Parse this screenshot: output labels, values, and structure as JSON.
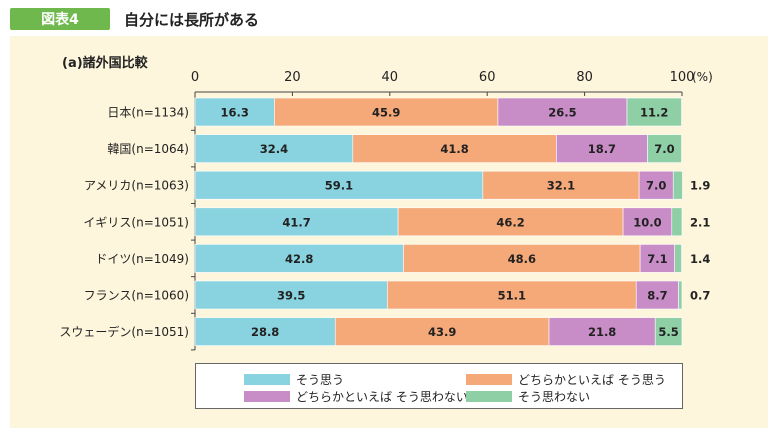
{
  "header": {
    "figure_label": "図表4",
    "title": "自分には長所がある"
  },
  "chart_data": {
    "type": "bar",
    "orientation": "horizontal",
    "stacked": true,
    "subtitle": "(a)諸外国比較",
    "x_unit": "(%)",
    "xlim": [
      0,
      100
    ],
    "x_ticks": [
      "0",
      "20",
      "40",
      "60",
      "80",
      "100"
    ],
    "categories": [
      "日本(n=1134)",
      "韓国(n=1064)",
      "アメリカ(n=1063)",
      "イギリス(n=1051)",
      "ドイツ(n=1049)",
      "フランス(n=1060)",
      "スウェーデン(n=1051)"
    ],
    "series": [
      {
        "name": "そう思う",
        "color": "#88d3df",
        "values": [
          16.3,
          32.4,
          59.1,
          41.7,
          42.8,
          39.5,
          28.8
        ]
      },
      {
        "name": "どちらかといえば そう思う",
        "color": "#f5a878",
        "values": [
          45.9,
          41.8,
          32.1,
          46.2,
          48.6,
          51.1,
          43.9
        ]
      },
      {
        "name": "どちらかといえば そう思わない",
        "color": "#c88cc6",
        "values": [
          26.5,
          18.7,
          7.0,
          10.0,
          7.1,
          8.7,
          21.8
        ]
      },
      {
        "name": "そう思わない",
        "color": "#8fcfa6",
        "values": [
          11.2,
          7.0,
          1.9,
          2.1,
          1.4,
          0.7,
          5.5
        ]
      }
    ],
    "value_labels": [
      [
        "16.3",
        "45.9",
        "26.5",
        "11.2"
      ],
      [
        "32.4",
        "41.8",
        "18.7",
        "7.0"
      ],
      [
        "59.1",
        "32.1",
        "7.0",
        "1.9"
      ],
      [
        "41.7",
        "46.2",
        "10.0",
        "2.1"
      ],
      [
        "42.8",
        "48.6",
        "7.1",
        "1.4"
      ],
      [
        "39.5",
        "51.1",
        "8.7",
        "0.7"
      ],
      [
        "28.8",
        "43.9",
        "21.8",
        "5.5"
      ]
    ],
    "legend_placement": "bottom",
    "grid": false
  }
}
